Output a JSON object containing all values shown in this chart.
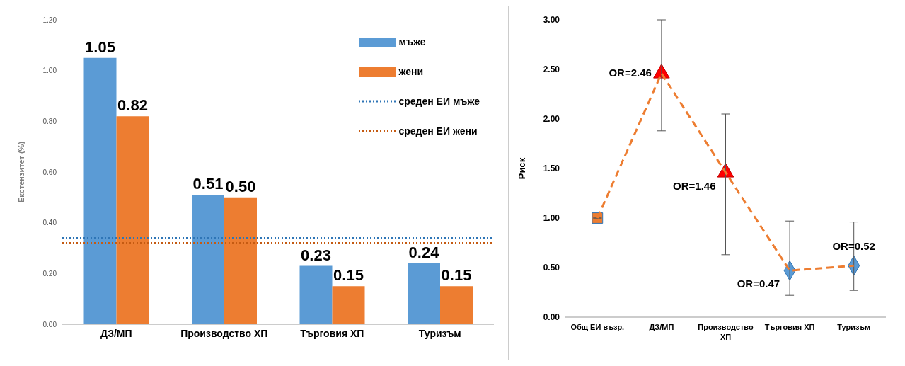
{
  "chart_data": [
    {
      "type": "bar",
      "ylabel": "Екстензитет (%)",
      "categories": [
        "ДЗ/МП",
        "Производство ХП",
        "Търговия ХП",
        "Туризъм"
      ],
      "series": [
        {
          "name": "мъже",
          "color": "#5b9bd5",
          "values": [
            1.05,
            0.51,
            0.23,
            0.24
          ],
          "value_labels": [
            "1.05",
            "0.51",
            "0.23",
            "0.24"
          ]
        },
        {
          "name": "жени",
          "color": "#ed7d31",
          "values": [
            0.82,
            0.5,
            0.15,
            0.15
          ],
          "value_labels": [
            "0.82",
            "0.50",
            "0.15",
            "0.15"
          ]
        }
      ],
      "ref_lines": [
        {
          "axis": "y",
          "value": 0.34,
          "label": "среден ЕИ мъже",
          "color": "#2e75b6",
          "line_style": "dotted"
        },
        {
          "axis": "y",
          "value": 0.32,
          "label": "среден ЕИ жени",
          "color": "#c55a11",
          "line_style": "dotted"
        }
      ],
      "ylim": [
        0,
        1.2
      ],
      "yticks": [
        {
          "value": 0,
          "label": "0.00"
        },
        {
          "value": 0.2,
          "label": "0.20"
        },
        {
          "value": 0.4,
          "label": "0.40"
        },
        {
          "value": 0.6,
          "label": "0.60"
        },
        {
          "value": 0.8,
          "label": "0.80"
        },
        {
          "value": 1,
          "label": "1.00"
        },
        {
          "value": 1.2,
          "label": "1.20"
        }
      ],
      "grid": false,
      "legend": "top right"
    },
    {
      "type": "line",
      "ylabel": "Риск",
      "categories": [
        "Общ ЕИ възр.",
        "ДЗ/МП",
        "Производство ХП",
        "Търговия ХП",
        "Туризъм"
      ],
      "series": [
        {
          "type": "line",
          "color": "#ed7d31",
          "line_style": "dashed",
          "marker": "none",
          "values": [
            1,
            2.46,
            1.46,
            0.47,
            0.52
          ],
          "errors": [
            null,
            [
              1.88,
              3.0
            ],
            [
              0.63,
              2.05
            ],
            [
              0.22,
              0.97
            ],
            [
              0.27,
              0.96
            ]
          ],
          "value_labels": [
            null,
            "OR=2.46",
            "OR=1.46",
            "OR=0.47",
            "OR=0.52"
          ]
        },
        {
          "type": "scatter",
          "color": "#ed7d31",
          "marker": "square",
          "x": [
            "Общ ЕИ възр."
          ],
          "values": [
            1
          ]
        },
        {
          "type": "scatter",
          "color": "#ff0000",
          "marker": "triangle",
          "x": [
            "ДЗ/МП",
            "Производство ХП"
          ],
          "values": [
            2.46,
            1.46
          ]
        },
        {
          "type": "scatter",
          "color": "#5b9bd5",
          "marker": "diamond",
          "x": [
            "Търговия ХП",
            "Туризъм"
          ],
          "values": [
            0.47,
            0.52
          ]
        }
      ],
      "ylim": [
        0,
        3
      ],
      "yticks": [
        {
          "value": 0,
          "label": "0.00"
        },
        {
          "value": 0.5,
          "label": "0.50"
        },
        {
          "value": 1,
          "label": "1.00"
        },
        {
          "value": 1.5,
          "label": "1.50"
        },
        {
          "value": 2,
          "label": "2.00"
        },
        {
          "value": 2.5,
          "label": "2.50"
        },
        {
          "value": 3,
          "label": "3.00"
        }
      ],
      "grid": false,
      "legend": false
    }
  ]
}
